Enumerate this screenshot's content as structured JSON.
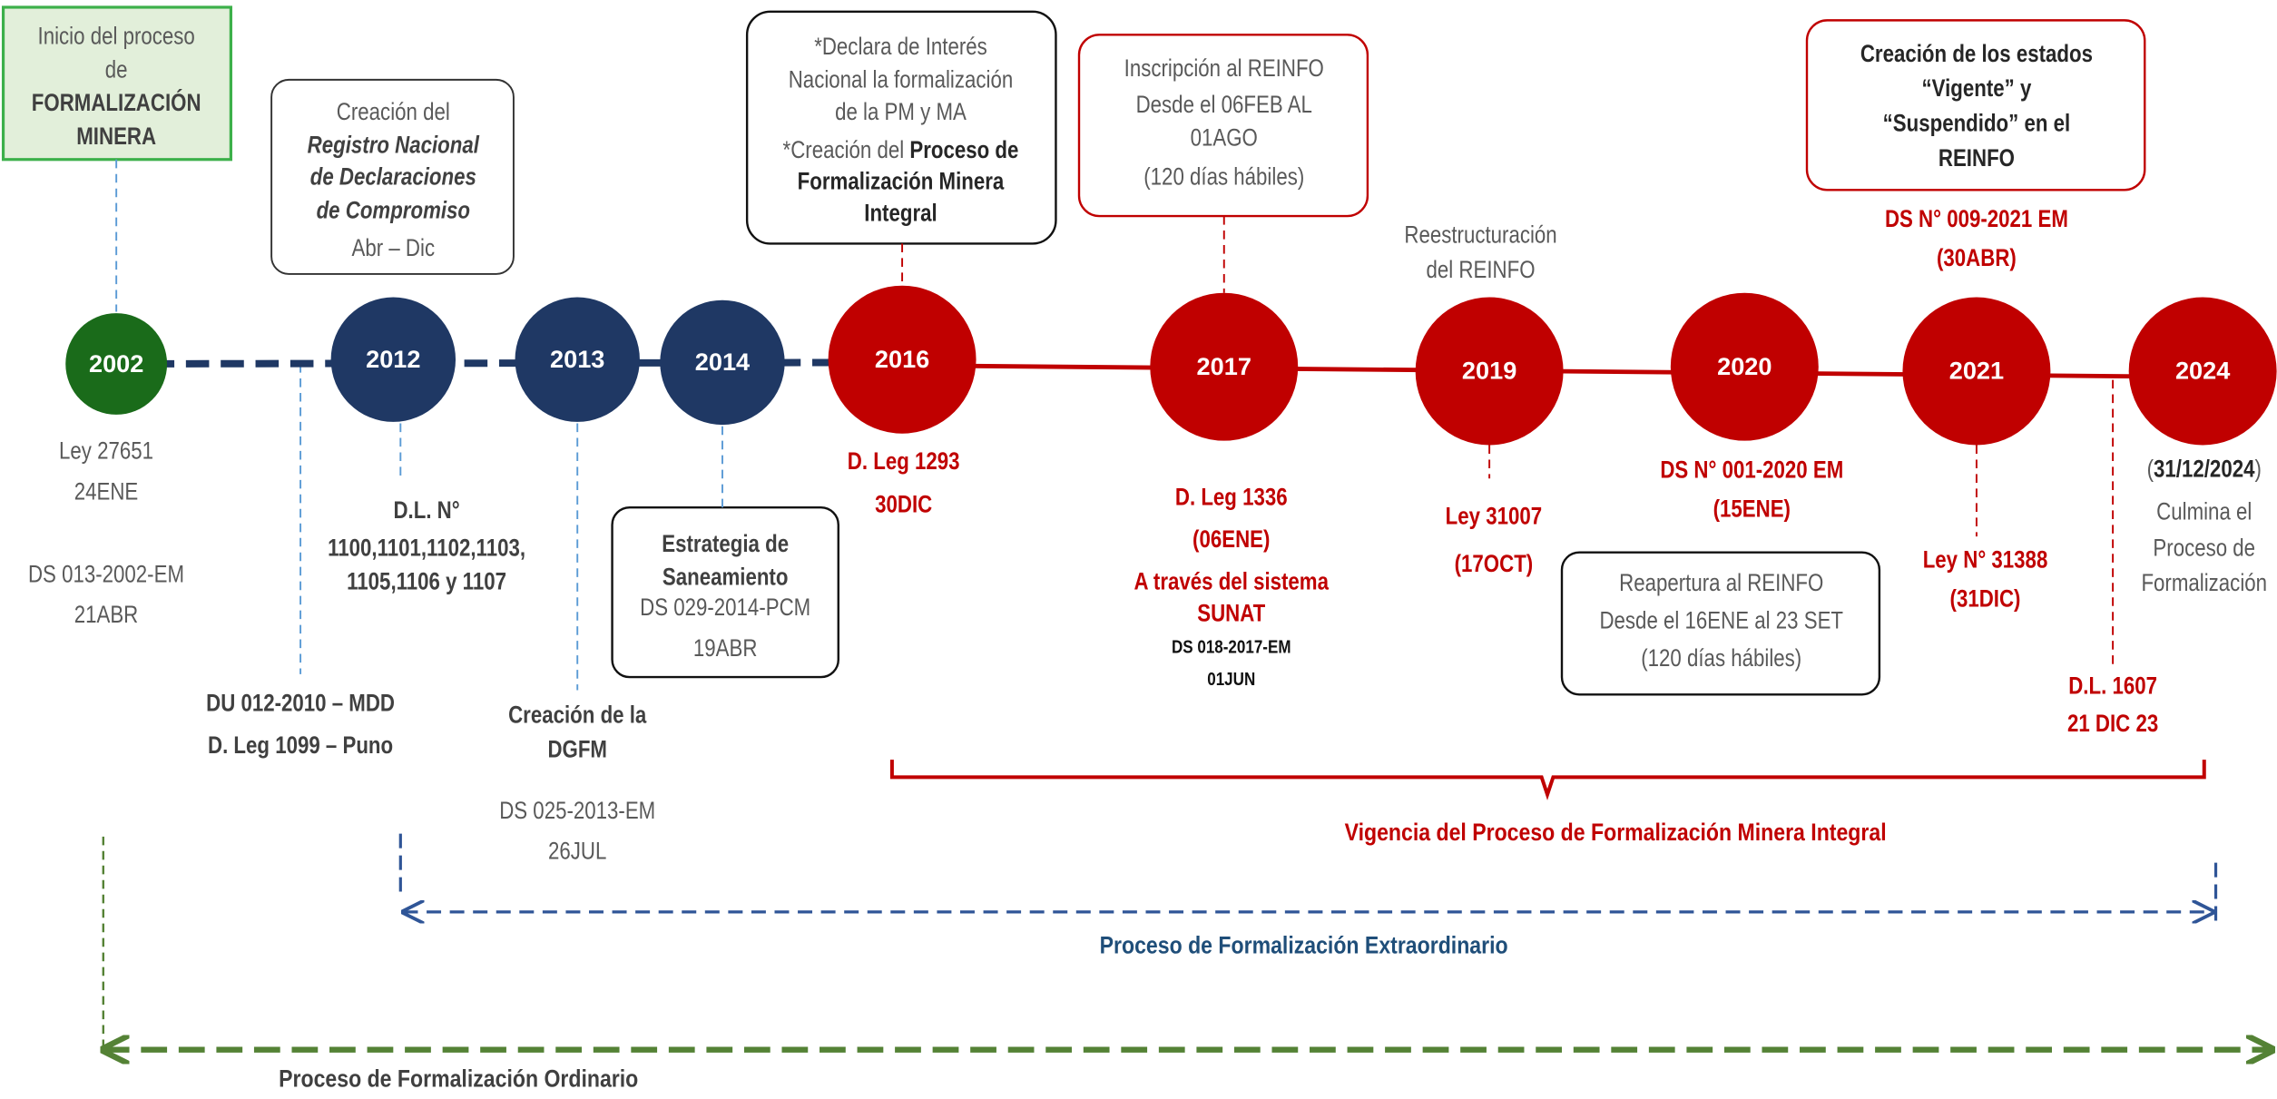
{
  "years": [
    "2002",
    "2012",
    "2013",
    "2014",
    "2016",
    "2017",
    "2019",
    "2020",
    "2021",
    "2024"
  ],
  "start_box": [
    "Inicio del proceso",
    "de",
    "FORMALIZACIÓN",
    "MINERA"
  ],
  "box_2012": [
    "Creación del",
    "Registro Nacional",
    "de Declaraciones",
    "de Compromiso",
    "Abr – Dic"
  ],
  "box_2016": [
    "*Declara de Interés",
    "Nacional la formalización",
    "de la PM y MA",
    [
      "*Creación del ",
      "Proceso de"
    ],
    "Formalización Minera",
    "Integral"
  ],
  "box_2017": [
    "Inscripción al REINFO",
    "Desde el 06FEB AL",
    "01AGO",
    "(120 días hábiles)"
  ],
  "box_2021": [
    "Creación de los estados",
    "“Vigente” y",
    "“Suspendido” en el",
    "REINFO"
  ],
  "label_2019": [
    "Reestructuración",
    "del REINFO"
  ],
  "label_2021": [
    "DS N° 009-2021 EM",
    "(30ABR)"
  ],
  "below_2002": [
    "Ley 27651",
    "24ENE",
    "DS 013-2002-EM",
    "21ABR"
  ],
  "du_2010": [
    "DU 012-2010 – MDD",
    "D. Leg 1099 – Puno"
  ],
  "dl_2012": [
    "D.L. N°",
    "1100,1101,1102,1103,",
    "1105,1106 y 1107"
  ],
  "dgfm_2013": [
    "Creación de la",
    "DGFM",
    "DS 025-2013-EM",
    "26JUL"
  ],
  "box_2014": [
    "Estrategia de",
    "Saneamiento",
    "DS 029-2014-PCM",
    "19ABR"
  ],
  "leg_1293": [
    "D. Leg 1293",
    "30DIC"
  ],
  "leg_1336": [
    "D. Leg 1336",
    "(06ENE)",
    "A través del sistema",
    "SUNAT",
    "DS 018-2017-EM",
    "01JUN"
  ],
  "ley_31007": [
    "Ley 31007",
    "(17OCT)"
  ],
  "ds_2020": [
    "DS N° 001-2020 EM",
    "(15ENE)"
  ],
  "box_reapertura": [
    "Reapertura al REINFO",
    "Desde el 16ENE al 23 SET",
    "(120 días hábiles)"
  ],
  "ley_31388": [
    "Ley N° 31388",
    "(31DIC)"
  ],
  "dl_1607": [
    "D.L. 1607",
    "21 DIC 23"
  ],
  "end_2024": [
    [
      "(",
      "31/12/2024",
      ")"
    ],
    "Culmina el",
    "Proceso de",
    "Formalización"
  ],
  "spans": [
    "Vigencia del Proceso de Formalización Minera Integral",
    "Proceso de Formalización Extraordinario",
    "Proceso de Formalización Ordinario"
  ]
}
